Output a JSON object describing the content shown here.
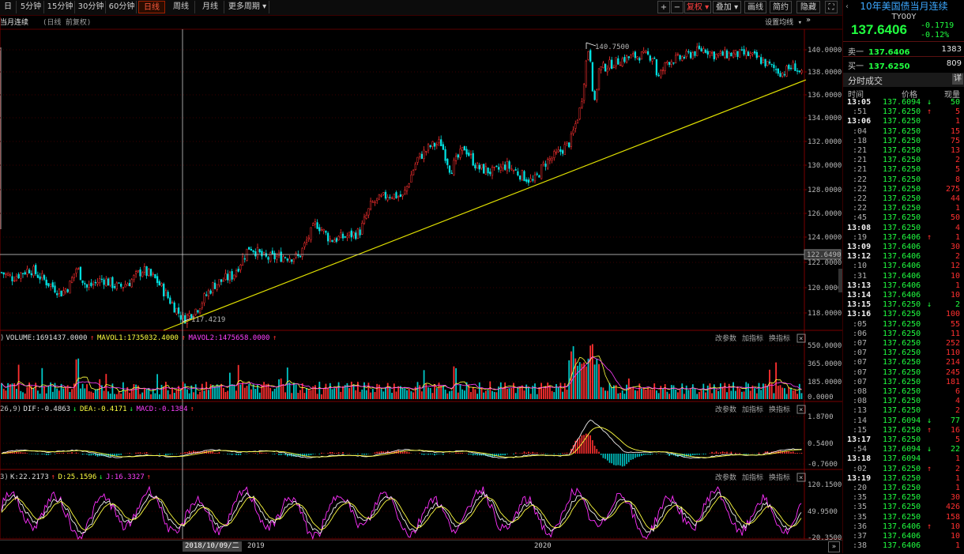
{
  "toolbar": {
    "left_items": [
      "日",
      "5分钟",
      "15分钟",
      "30分钟",
      "60分钟",
      "日线",
      "周线",
      "月线",
      "更多周期 ▾"
    ],
    "active_index": 5,
    "right_items": [
      "+",
      "−",
      "复权 ▾",
      "叠加 ▾",
      "画线",
      "简约",
      "隐藏 »",
      "⛶"
    ]
  },
  "chart_header": {
    "title": "当月连续",
    "subtitle": "(日线 前复权)",
    "settings_label": "设置均线 ▾"
  },
  "price_chart": {
    "y_ticks": [
      "140.0000",
      "138.0000",
      "136.0000",
      "134.0000",
      "132.0000",
      "130.0000",
      "128.0000",
      "126.0000",
      "124.0000",
      "122.0000",
      "120.0000",
      "118.0000"
    ],
    "y_tick_values": [
      140,
      138,
      136,
      134,
      132,
      130,
      128,
      126,
      124,
      122,
      120,
      118
    ],
    "high_label": "140.7500",
    "low_label": "117.4219",
    "crosshair_value_label": "122.6490",
    "colors": {
      "up": "#ff3030",
      "down": "#00e0e0",
      "trendline": "#e0e000",
      "crosshair": "#ffffff"
    }
  },
  "volume_panel": {
    "prefix": ")",
    "volume": "VOLUME:1691437.0000",
    "mavol1": "MAVOL1:1735032.4000",
    "mavol2": "MAVOL2:1475658.0000",
    "y_ticks": [
      "550.0000",
      "365.0000",
      "185.0000",
      "0.0000"
    ],
    "actions": [
      "改参数",
      "加指标",
      "换指标"
    ]
  },
  "macd_panel": {
    "prefix": "26,9)",
    "dif": "DIF:-0.4863",
    "dea": "DEA:-0.4171",
    "macd": "MACD:-0.1384",
    "y_ticks": [
      "1.8700",
      "0.5400",
      "-0.7600"
    ],
    "actions": [
      "改参数",
      "加指标",
      "换指标"
    ]
  },
  "kdj_panel": {
    "prefix": "3)",
    "k": "K:22.2173",
    "d": "D:25.1596",
    "j": "J:16.3327",
    "y_ticks": [
      "120.1500",
      "49.9500",
      "-20.3500"
    ],
    "actions": [
      "改参数",
      "加指标",
      "换指标"
    ]
  },
  "x_axis": {
    "crosshair_date": "2018/10/09/二",
    "labels": [
      "2019",
      "2020"
    ]
  },
  "right_panel": {
    "title": "10年美国债当月连续",
    "code": "TY00Y",
    "price": "137.6406",
    "change": "-0.1719",
    "change_pct": "-0.12%",
    "ask_label": "卖一",
    "ask_price": "137.6406",
    "ask_vol": "1383",
    "bid_label": "买一",
    "bid_price": "137.6250",
    "bid_vol": "809",
    "trades_title": "分时成交",
    "detail_btn": "详",
    "col_time": "时间",
    "col_price": "价格",
    "col_vol": "现量",
    "trades": [
      {
        "t": "13:05",
        "major": true,
        "p": "137.6094",
        "a": "↓",
        "v": "50"
      },
      {
        "t": ":51",
        "major": false,
        "p": "137.6250",
        "a": "↑",
        "v": "5"
      },
      {
        "t": "13:06",
        "major": true,
        "p": "137.6250",
        "a": "",
        "v": "1"
      },
      {
        "t": ":04",
        "major": false,
        "p": "137.6250",
        "a": "",
        "v": "15"
      },
      {
        "t": ":18",
        "major": false,
        "p": "137.6250",
        "a": "",
        "v": "75"
      },
      {
        "t": ":21",
        "major": false,
        "p": "137.6250",
        "a": "",
        "v": "13"
      },
      {
        "t": ":21",
        "major": false,
        "p": "137.6250",
        "a": "",
        "v": "2"
      },
      {
        "t": ":21",
        "major": false,
        "p": "137.6250",
        "a": "",
        "v": "5"
      },
      {
        "t": ":22",
        "major": false,
        "p": "137.6250",
        "a": "",
        "v": "8"
      },
      {
        "t": ":22",
        "major": false,
        "p": "137.6250",
        "a": "",
        "v": "275"
      },
      {
        "t": ":22",
        "major": false,
        "p": "137.6250",
        "a": "",
        "v": "44"
      },
      {
        "t": ":22",
        "major": false,
        "p": "137.6250",
        "a": "",
        "v": "1"
      },
      {
        "t": ":45",
        "major": false,
        "p": "137.6250",
        "a": "",
        "v": "50"
      },
      {
        "t": "13:08",
        "major": true,
        "p": "137.6250",
        "a": "",
        "v": "4"
      },
      {
        "t": ":19",
        "major": false,
        "p": "137.6406",
        "a": "↑",
        "v": "1"
      },
      {
        "t": "13:09",
        "major": true,
        "p": "137.6406",
        "a": "",
        "v": "30"
      },
      {
        "t": "13:12",
        "major": true,
        "p": "137.6406",
        "a": "",
        "v": "2"
      },
      {
        "t": ":10",
        "major": false,
        "p": "137.6406",
        "a": "",
        "v": "12"
      },
      {
        "t": ":31",
        "major": false,
        "p": "137.6406",
        "a": "",
        "v": "10"
      },
      {
        "t": "13:13",
        "major": true,
        "p": "137.6406",
        "a": "",
        "v": "1"
      },
      {
        "t": "13:14",
        "major": true,
        "p": "137.6406",
        "a": "",
        "v": "10"
      },
      {
        "t": "13:15",
        "major": true,
        "p": "137.6250",
        "a": "↓",
        "v": "2"
      },
      {
        "t": "13:16",
        "major": true,
        "p": "137.6250",
        "a": "",
        "v": "100"
      },
      {
        "t": ":05",
        "major": false,
        "p": "137.6250",
        "a": "",
        "v": "55"
      },
      {
        "t": ":06",
        "major": false,
        "p": "137.6250",
        "a": "",
        "v": "11"
      },
      {
        "t": ":07",
        "major": false,
        "p": "137.6250",
        "a": "",
        "v": "252"
      },
      {
        "t": ":07",
        "major": false,
        "p": "137.6250",
        "a": "",
        "v": "110"
      },
      {
        "t": ":07",
        "major": false,
        "p": "137.6250",
        "a": "",
        "v": "214"
      },
      {
        "t": ":07",
        "major": false,
        "p": "137.6250",
        "a": "",
        "v": "245"
      },
      {
        "t": ":07",
        "major": false,
        "p": "137.6250",
        "a": "",
        "v": "181"
      },
      {
        "t": ":08",
        "major": false,
        "p": "137.6250",
        "a": "",
        "v": "6"
      },
      {
        "t": ":08",
        "major": false,
        "p": "137.6250",
        "a": "",
        "v": "4"
      },
      {
        "t": ":13",
        "major": false,
        "p": "137.6250",
        "a": "",
        "v": "2"
      },
      {
        "t": ":14",
        "major": false,
        "p": "137.6094",
        "a": "↓",
        "v": "77"
      },
      {
        "t": ":15",
        "major": false,
        "p": "137.6250",
        "a": "↑",
        "v": "16"
      },
      {
        "t": "13:17",
        "major": true,
        "p": "137.6250",
        "a": "",
        "v": "5"
      },
      {
        "t": ":54",
        "major": false,
        "p": "137.6094",
        "a": "↓",
        "v": "22"
      },
      {
        "t": "13:18",
        "major": true,
        "p": "137.6094",
        "a": "",
        "v": "1"
      },
      {
        "t": ":02",
        "major": false,
        "p": "137.6250",
        "a": "↑",
        "v": "2"
      },
      {
        "t": "13:19",
        "major": true,
        "p": "137.6250",
        "a": "",
        "v": "1"
      },
      {
        "t": ":20",
        "major": false,
        "p": "137.6250",
        "a": "",
        "v": "1"
      },
      {
        "t": ":35",
        "major": false,
        "p": "137.6250",
        "a": "",
        "v": "30"
      },
      {
        "t": ":35",
        "major": false,
        "p": "137.6250",
        "a": "",
        "v": "426"
      },
      {
        "t": ":35",
        "major": false,
        "p": "137.6250",
        "a": "",
        "v": "158"
      },
      {
        "t": ":36",
        "major": false,
        "p": "137.6406",
        "a": "↑",
        "v": "10"
      },
      {
        "t": ":37",
        "major": false,
        "p": "137.6406",
        "a": "",
        "v": "10"
      },
      {
        "t": ":38",
        "major": false,
        "p": "137.6406",
        "a": "",
        "v": "1"
      }
    ]
  }
}
